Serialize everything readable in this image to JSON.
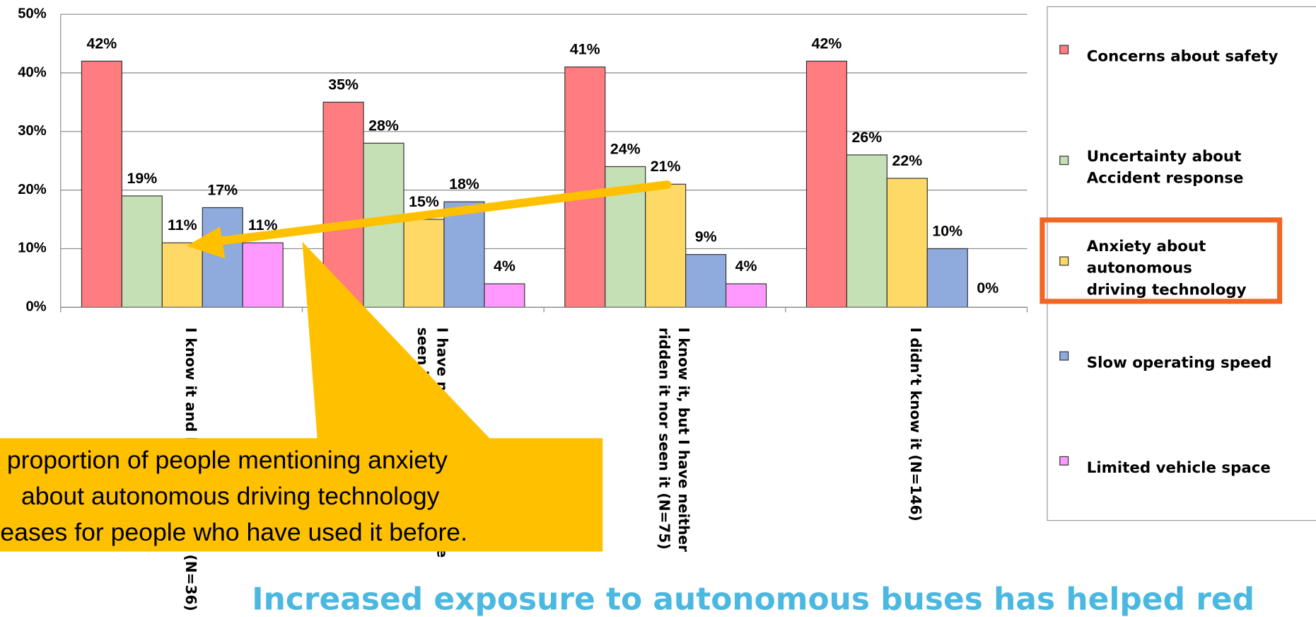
{
  "chart_data": {
    "type": "bar",
    "categories": [
      [
        "I know it and have ridden it (N=36)"
      ],
      [
        "I have not ridden it but have",
        "seen it before"
      ],
      [
        "I know it, but I have neither",
        "ridden it nor seen it (N=75)"
      ],
      [
        "I didn’t know it (N=146)"
      ]
    ],
    "series": [
      {
        "name": [
          "Concerns about safety"
        ],
        "color": "#ff7c80",
        "values": [
          42,
          35,
          41,
          42
        ],
        "value_labels": [
          "42%",
          "35%",
          "41%",
          "42%"
        ]
      },
      {
        "name": [
          "Uncertainty about",
          "Accident response"
        ],
        "color": "#c5e0b4",
        "values": [
          19,
          28,
          24,
          26
        ],
        "value_labels": [
          "19%",
          "28%",
          "24%",
          "26%"
        ]
      },
      {
        "name": [
          "Anxiety about",
          "autonomous",
          "driving technology"
        ],
        "color": "#ffd966",
        "values": [
          11,
          15,
          21,
          22
        ],
        "value_labels": [
          "11%",
          "15%",
          "21%",
          "22%"
        ]
      },
      {
        "name": [
          "Slow operating speed"
        ],
        "color": "#8faadc",
        "values": [
          17,
          18,
          9,
          10
        ],
        "value_labels": [
          "17%",
          "18%",
          "9%",
          "10%"
        ]
      },
      {
        "name": [
          "Limited vehicle space"
        ],
        "color": "#ff99ff",
        "values": [
          11,
          4,
          4,
          0
        ],
        "value_labels": [
          "11%",
          "4%",
          "4%",
          "0%"
        ]
      }
    ],
    "ylim": [
      0,
      50
    ],
    "yticks": [
      {
        "value": 0,
        "label": "0%"
      },
      {
        "value": 10,
        "label": "10%"
      },
      {
        "value": 20,
        "label": "20%"
      },
      {
        "value": 30,
        "label": "30%"
      },
      {
        "value": 40,
        "label": "40%"
      },
      {
        "value": 50,
        "label": "50%"
      }
    ],
    "grid": true,
    "legend": "right",
    "highlight_series": 2
  },
  "callout": {
    "lines": [
      "proportion of people mentioning anxiety",
      "about autonomous driving technology",
      "eases for people who have used it before."
    ]
  },
  "headline": "Increased exposure to autonomous buses has helped red"
}
